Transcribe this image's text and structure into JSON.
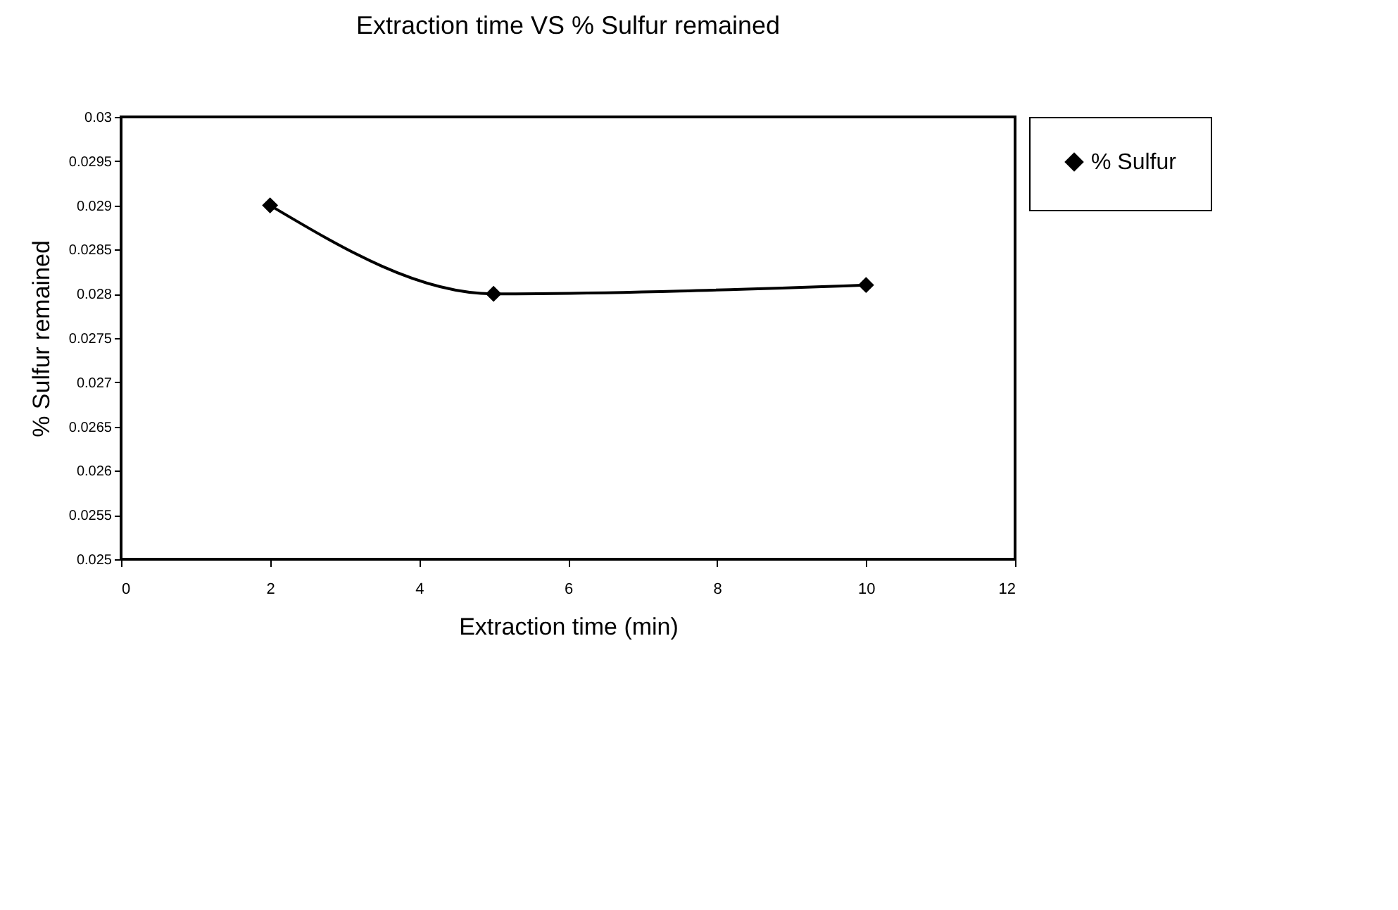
{
  "chart_data": {
    "type": "line",
    "title": "Extraction time VS % Sulfur remained",
    "xlabel": "Extraction time (min)",
    "ylabel": "% Sulfur remained",
    "x": [
      2,
      5,
      10
    ],
    "series": [
      {
        "name": "% Sulfur",
        "color": "#000000",
        "values": [
          0.029,
          0.028,
          0.0281
        ]
      }
    ],
    "xlim": [
      0,
      12
    ],
    "xticks": [
      0,
      2,
      4,
      6,
      8,
      10,
      12
    ],
    "ylim": [
      0.025,
      0.03
    ],
    "yticks": [
      0.025,
      0.0255,
      0.026,
      0.0265,
      0.027,
      0.0275,
      0.028,
      0.0285,
      0.029,
      0.0295,
      0.03
    ],
    "grid": false,
    "legend": "right",
    "marker": "diamond",
    "line_style": "solid"
  }
}
